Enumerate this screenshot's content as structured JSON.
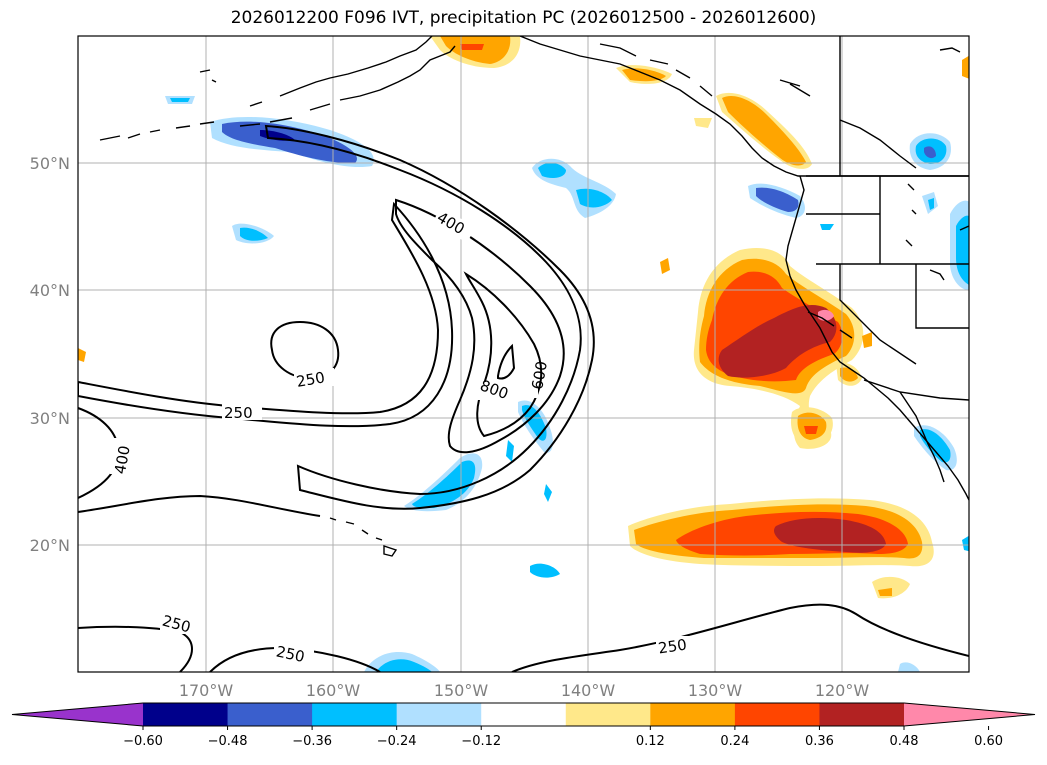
{
  "title": "2026012200 F096 IVT, precipitation PC (2026012500 - 2026012600)",
  "map": {
    "lat_ticks": [
      "20°N",
      "30°N",
      "40°N",
      "50°N"
    ],
    "lon_ticks": [
      "170°W",
      "160°W",
      "150°W",
      "140°W",
      "130°W",
      "120°W"
    ],
    "gridlines": true,
    "coastline_color": "#000000"
  },
  "ivt_contour_labels": [
    "400",
    "250",
    "250",
    "800",
    "600",
    "400",
    "250",
    "250",
    "250"
  ],
  "colorbar": {
    "colors": [
      "#9933cc",
      "#00008b",
      "#3a5fcd",
      "#00bfff",
      "#b0e0ff",
      "#ffffff",
      "#ffe88a",
      "#ffa500",
      "#ff4500",
      "#b22222",
      "#ff88aa"
    ],
    "tick_labels": [
      "−0.60",
      "−0.48",
      "−0.36",
      "−0.24",
      "−0.12",
      "0.12",
      "0.24",
      "0.36",
      "0.48",
      "0.60"
    ],
    "extend": "both"
  }
}
